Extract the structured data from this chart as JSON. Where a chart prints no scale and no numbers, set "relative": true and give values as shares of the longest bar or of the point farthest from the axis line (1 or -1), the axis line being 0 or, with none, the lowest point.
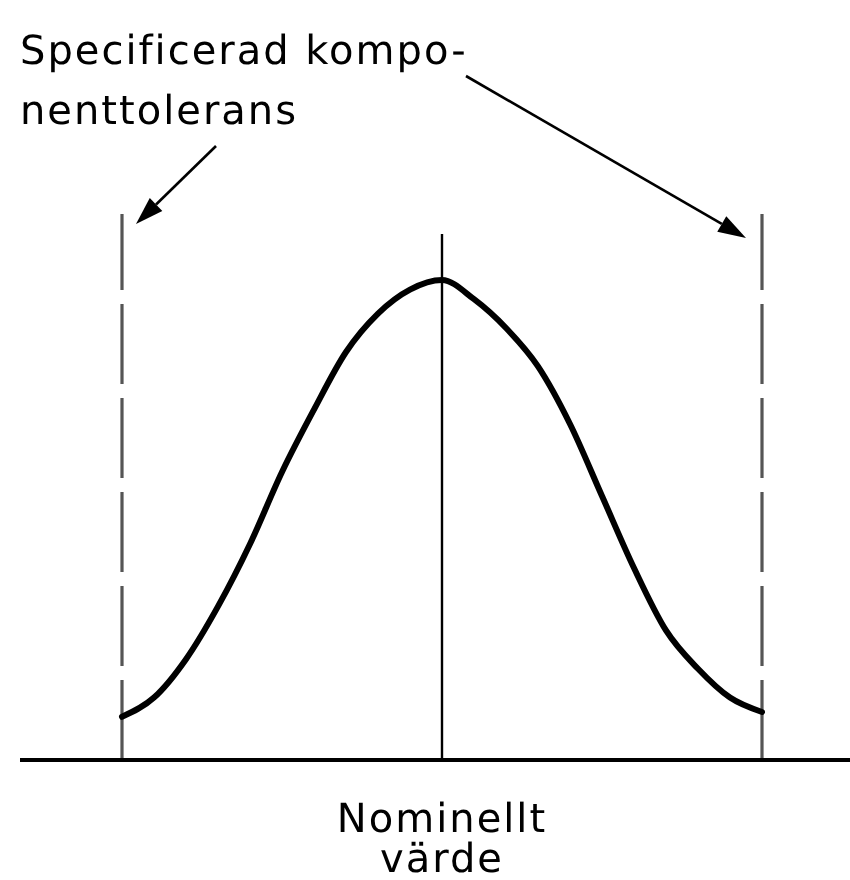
{
  "chart_data": {
    "type": "line",
    "relative": true,
    "categories": [
      null,
      null,
      null,
      null,
      null,
      null,
      null,
      null,
      null,
      null,
      null,
      null,
      null,
      null,
      null,
      null,
      null,
      null,
      null,
      null,
      null
    ],
    "values": [
      0.09,
      0.13,
      0.21,
      0.32,
      0.45,
      0.6,
      0.73,
      0.85,
      0.93,
      0.98,
      1.0,
      0.96,
      0.9,
      0.82,
      0.7,
      0.55,
      0.4,
      0.27,
      0.19,
      0.13,
      0.1
    ],
    "color": "#000000",
    "annotations": [
      "Specificerad kompo-\nnenttolerans",
      "Nominellt värde"
    ],
    "marker": "none",
    "line_style": "solid"
  }
}
